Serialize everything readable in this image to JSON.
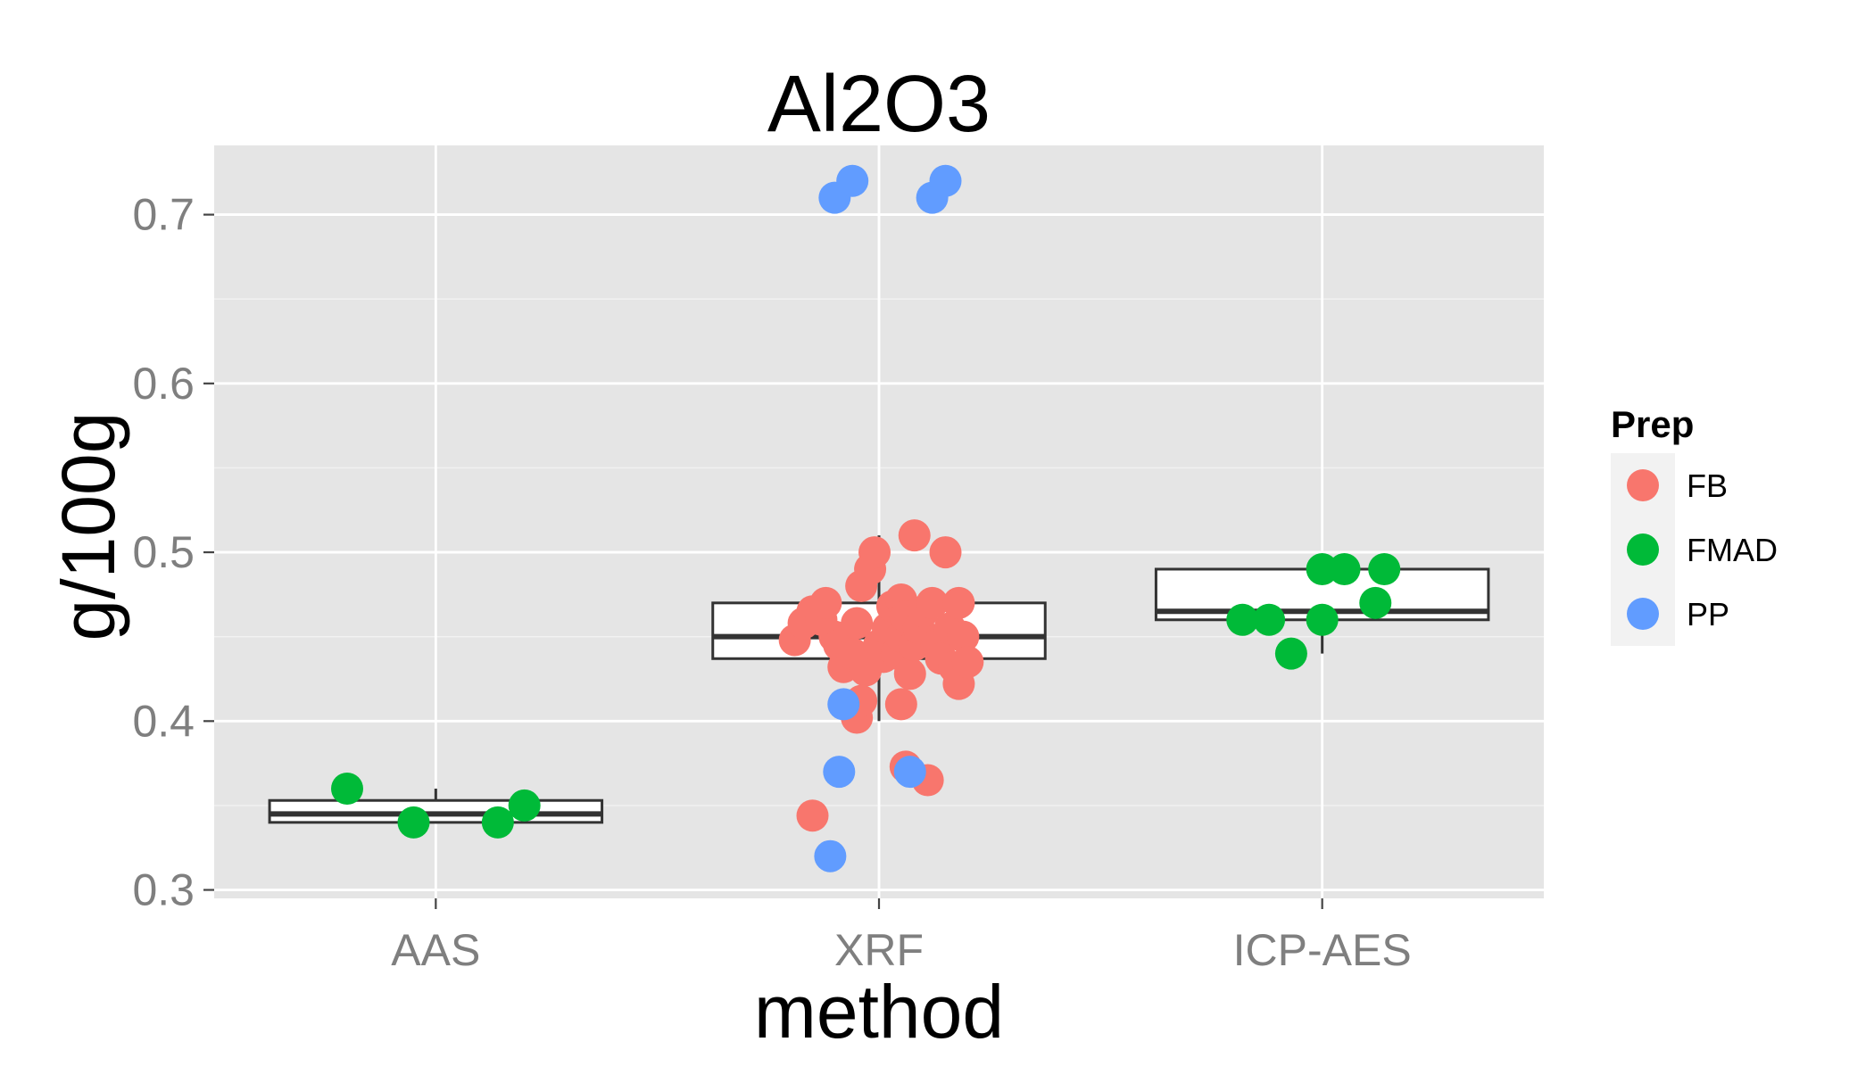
{
  "chart_data": {
    "type": "scatter",
    "title": "Al2O3",
    "xlabel": "method",
    "ylabel": "g/100g",
    "categories": [
      "AAS",
      "XRF",
      "ICP-AES"
    ],
    "ylim": [
      0.295,
      0.741
    ],
    "yticks": [
      "0.3",
      "0.4",
      "0.5",
      "0.6",
      "0.7"
    ],
    "grid": true,
    "legend": {
      "title": "Prep",
      "placement": "right",
      "entries": [
        {
          "name": "FB",
          "color": "#F8766D"
        },
        {
          "name": "FMAD",
          "color": "#00BA38"
        },
        {
          "name": "PP",
          "color": "#619CFF"
        }
      ]
    },
    "boxes": [
      {
        "category": "AAS",
        "lower_whisker": 0.34,
        "q1": 0.34,
        "median": 0.345,
        "q3": 0.353,
        "upper_whisker": 0.36
      },
      {
        "category": "XRF",
        "lower_whisker": 0.4,
        "q1": 0.437,
        "median": 0.45,
        "q3": 0.47,
        "upper_whisker": 0.51
      },
      {
        "category": "ICP-AES",
        "lower_whisker": 0.44,
        "q1": 0.46,
        "median": 0.465,
        "q3": 0.49,
        "upper_whisker": 0.49
      }
    ],
    "series": [
      {
        "name": "FB",
        "color": "#F8766D",
        "points": [
          {
            "x": "XRF",
            "jitter": -0.19,
            "y": 0.448
          },
          {
            "x": "XRF",
            "jitter": -0.17,
            "y": 0.458
          },
          {
            "x": "XRF",
            "jitter": -0.15,
            "y": 0.465
          },
          {
            "x": "XRF",
            "jitter": -0.13,
            "y": 0.46
          },
          {
            "x": "XRF",
            "jitter": -0.12,
            "y": 0.47
          },
          {
            "x": "XRF",
            "jitter": -0.1,
            "y": 0.45
          },
          {
            "x": "XRF",
            "jitter": -0.09,
            "y": 0.445
          },
          {
            "x": "XRF",
            "jitter": -0.08,
            "y": 0.432
          },
          {
            "x": "XRF",
            "jitter": -0.06,
            "y": 0.44
          },
          {
            "x": "XRF",
            "jitter": -0.05,
            "y": 0.458
          },
          {
            "x": "XRF",
            "jitter": -0.04,
            "y": 0.48
          },
          {
            "x": "XRF",
            "jitter": -0.03,
            "y": 0.43
          },
          {
            "x": "XRF",
            "jitter": -0.02,
            "y": 0.49
          },
          {
            "x": "XRF",
            "jitter": -0.01,
            "y": 0.5
          },
          {
            "x": "XRF",
            "jitter": -0.05,
            "y": 0.402
          },
          {
            "x": "XRF",
            "jitter": -0.04,
            "y": 0.412
          },
          {
            "x": "XRF",
            "jitter": 0.0,
            "y": 0.445
          },
          {
            "x": "XRF",
            "jitter": 0.01,
            "y": 0.438
          },
          {
            "x": "XRF",
            "jitter": 0.02,
            "y": 0.455
          },
          {
            "x": "XRF",
            "jitter": 0.03,
            "y": 0.468
          },
          {
            "x": "XRF",
            "jitter": 0.04,
            "y": 0.44
          },
          {
            "x": "XRF",
            "jitter": 0.05,
            "y": 0.472
          },
          {
            "x": "XRF",
            "jitter": 0.05,
            "y": 0.45
          },
          {
            "x": "XRF",
            "jitter": 0.05,
            "y": 0.41
          },
          {
            "x": "XRF",
            "jitter": 0.06,
            "y": 0.462
          },
          {
            "x": "XRF",
            "jitter": 0.06,
            "y": 0.373
          },
          {
            "x": "XRF",
            "jitter": 0.07,
            "y": 0.428
          },
          {
            "x": "XRF",
            "jitter": 0.08,
            "y": 0.51
          },
          {
            "x": "XRF",
            "jitter": 0.08,
            "y": 0.445
          },
          {
            "x": "XRF",
            "jitter": 0.09,
            "y": 0.455
          },
          {
            "x": "XRF",
            "jitter": 0.1,
            "y": 0.465
          },
          {
            "x": "XRF",
            "jitter": 0.11,
            "y": 0.365
          },
          {
            "x": "XRF",
            "jitter": 0.12,
            "y": 0.47
          },
          {
            "x": "XRF",
            "jitter": 0.13,
            "y": 0.445
          },
          {
            "x": "XRF",
            "jitter": 0.14,
            "y": 0.437
          },
          {
            "x": "XRF",
            "jitter": 0.15,
            "y": 0.5
          },
          {
            "x": "XRF",
            "jitter": 0.16,
            "y": 0.455
          },
          {
            "x": "XRF",
            "jitter": 0.17,
            "y": 0.432
          },
          {
            "x": "XRF",
            "jitter": 0.18,
            "y": 0.47
          },
          {
            "x": "XRF",
            "jitter": 0.19,
            "y": 0.45
          },
          {
            "x": "XRF",
            "jitter": 0.18,
            "y": 0.422
          },
          {
            "x": "XRF",
            "jitter": 0.2,
            "y": 0.435
          },
          {
            "x": "XRF",
            "jitter": -0.15,
            "y": 0.344
          }
        ]
      },
      {
        "name": "FMAD",
        "color": "#00BA38",
        "points": [
          {
            "x": "AAS",
            "jitter": -0.2,
            "y": 0.36
          },
          {
            "x": "AAS",
            "jitter": -0.05,
            "y": 0.34
          },
          {
            "x": "AAS",
            "jitter": 0.14,
            "y": 0.34
          },
          {
            "x": "AAS",
            "jitter": 0.2,
            "y": 0.35
          },
          {
            "x": "ICP-AES",
            "jitter": -0.18,
            "y": 0.46
          },
          {
            "x": "ICP-AES",
            "jitter": -0.12,
            "y": 0.46
          },
          {
            "x": "ICP-AES",
            "jitter": -0.07,
            "y": 0.44
          },
          {
            "x": "ICP-AES",
            "jitter": 0.0,
            "y": 0.49
          },
          {
            "x": "ICP-AES",
            "jitter": 0.0,
            "y": 0.46
          },
          {
            "x": "ICP-AES",
            "jitter": 0.05,
            "y": 0.49
          },
          {
            "x": "ICP-AES",
            "jitter": 0.12,
            "y": 0.47
          },
          {
            "x": "ICP-AES",
            "jitter": 0.14,
            "y": 0.49
          }
        ]
      },
      {
        "name": "PP",
        "color": "#619CFF",
        "points": [
          {
            "x": "XRF",
            "jitter": -0.1,
            "y": 0.71
          },
          {
            "x": "XRF",
            "jitter": -0.06,
            "y": 0.72
          },
          {
            "x": "XRF",
            "jitter": 0.12,
            "y": 0.71
          },
          {
            "x": "XRF",
            "jitter": 0.15,
            "y": 0.72
          },
          {
            "x": "XRF",
            "jitter": -0.08,
            "y": 0.41
          },
          {
            "x": "XRF",
            "jitter": -0.09,
            "y": 0.37
          },
          {
            "x": "XRF",
            "jitter": 0.07,
            "y": 0.37
          },
          {
            "x": "XRF",
            "jitter": -0.11,
            "y": 0.32
          }
        ]
      }
    ]
  }
}
